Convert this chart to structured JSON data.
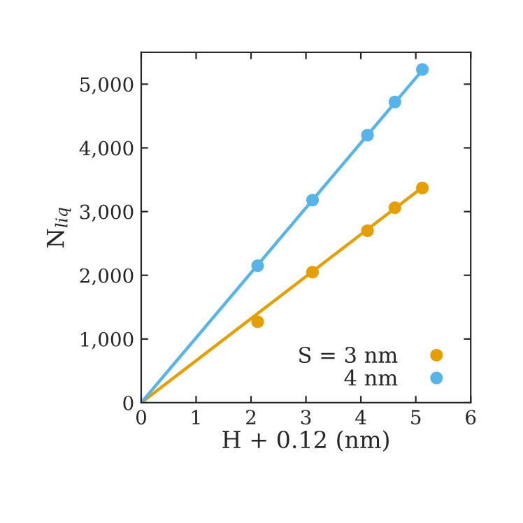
{
  "chart_data": {
    "type": "line",
    "xlabel": "H + 0.12 (nm)",
    "ylabel": "N$_{liq}$",
    "series": [
      {
        "name": "S = 3 nm",
        "color": "#e69f00",
        "type": "scatter",
        "marker": "circle",
        "x": [
          2.12,
          3.12,
          4.12,
          4.62,
          5.12
        ],
        "values": [
          1270,
          2050,
          2700,
          3060,
          3370
        ]
      },
      {
        "name": "4 nm",
        "color": "#56b4e9",
        "type": "scatter",
        "marker": "circle",
        "x": [
          2.12,
          3.12,
          4.12,
          4.62,
          5.12
        ],
        "values": [
          2150,
          3180,
          4200,
          4720,
          5230
        ]
      },
      {
        "color": "#e69f00",
        "x": [
          0,
          5.12
        ],
        "values": [
          0,
          3380
        ]
      },
      {
        "color": "#56b4e9",
        "x": [
          0,
          5.12
        ],
        "values": [
          0,
          5220
        ]
      }
    ],
    "xlim": [
      0,
      6
    ],
    "xticks": [
      0,
      1,
      2,
      3,
      4,
      5,
      6
    ],
    "ylim": [
      0,
      5500
    ],
    "yticks": [
      0,
      {
        "value": 1000,
        "label": "1,000"
      },
      {
        "value": 2000,
        "label": "2,000"
      },
      {
        "value": 3000,
        "label": "3,000"
      },
      {
        "value": 4000,
        "label": "4,000"
      },
      {
        "value": 5000,
        "label": "5,000"
      }
    ],
    "legend": "bottom right",
    "grid": false
  }
}
